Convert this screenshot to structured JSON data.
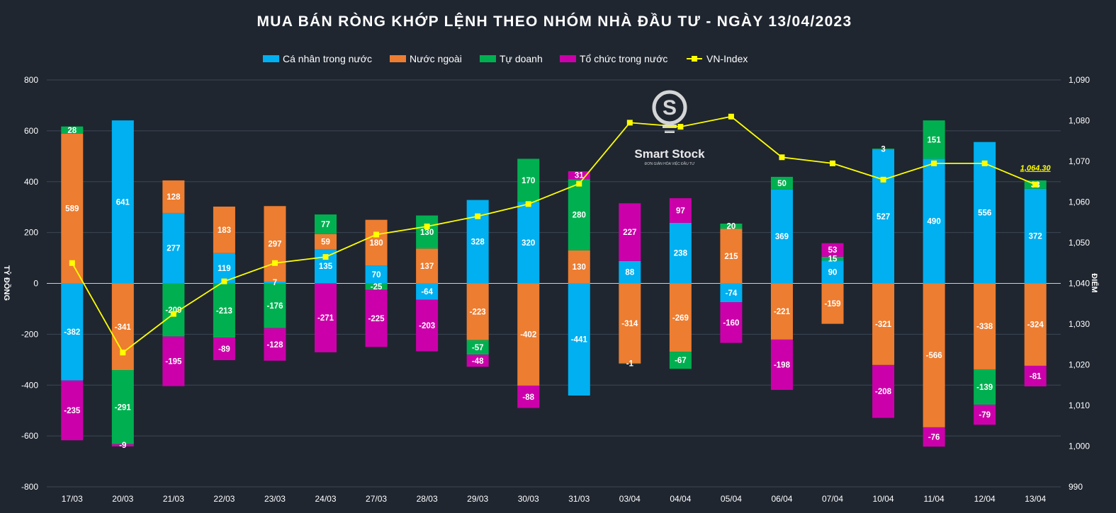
{
  "chart_data": {
    "type": "bar",
    "title": "MUA BÁN RÒNG KHỚP LỆNH THEO NHÓM NHÀ ĐẦU TƯ - NGÀY 13/04/2023",
    "ylabel": "TỶ ĐỒNG",
    "y2label": "ĐIỂM",
    "ylim": [
      -800,
      800
    ],
    "y2lim": [
      990,
      1090
    ],
    "yticks": [
      "800",
      "600",
      "400",
      "200",
      "0",
      "-200",
      "-400",
      "-600",
      "-800"
    ],
    "y2ticks": [
      "1,090",
      "1,080",
      "1,070",
      "1,060",
      "1,050",
      "1,040",
      "1,030",
      "1,020",
      "1,010",
      "1,000",
      "990"
    ],
    "categories": [
      "17/03",
      "20/03",
      "21/03",
      "22/03",
      "23/03",
      "24/03",
      "27/03",
      "28/03",
      "29/03",
      "30/03",
      "31/03",
      "03/04",
      "04/04",
      "05/04",
      "06/04",
      "07/04",
      "10/04",
      "11/04",
      "12/04",
      "13/04"
    ],
    "series": [
      {
        "name": "Cá nhân trong nước",
        "color": "#00b0f0",
        "values": [
          -382,
          641,
          277,
          119,
          7,
          135,
          70,
          -64,
          328,
          320,
          -441,
          88,
          238,
          -74,
          369,
          90,
          527,
          490,
          556,
          372
        ]
      },
      {
        "name": "Nước ngoài",
        "color": "#ed7d31",
        "values": [
          589,
          -341,
          128,
          183,
          297,
          59,
          180,
          137,
          -223,
          -402,
          130,
          -314,
          -269,
          215,
          -221,
          -159,
          -321,
          -566,
          -338,
          -324
        ]
      },
      {
        "name": "Tự doanh",
        "color": "#00b050",
        "values": [
          28,
          -291,
          -209,
          -213,
          -176,
          77,
          -25,
          130,
          -57,
          170,
          280,
          -1,
          -67,
          20,
          50,
          15,
          3,
          151,
          -139,
          33
        ]
      },
      {
        "name": "Tổ chức trong nước",
        "color": "#cc00aa",
        "values": [
          -235,
          -9,
          -195,
          -89,
          -128,
          -271,
          -225,
          -203,
          -48,
          -88,
          31,
          227,
          97,
          -160,
          -198,
          53,
          -208,
          -76,
          -79,
          -81
        ]
      }
    ],
    "line": {
      "name": "VN-Index",
      "color": "#ffff00",
      "values": [
        1045.0,
        1023.0,
        1032.5,
        1040.5,
        1045.0,
        1046.5,
        1052.0,
        1054.0,
        1056.5,
        1059.5,
        1064.5,
        1079.5,
        1078.5,
        1081.0,
        1071.0,
        1069.5,
        1065.5,
        1069.5,
        1069.5,
        1064.3
      ]
    },
    "last_label": "1,064.30"
  },
  "logo": {
    "name": "Smart Stock",
    "tagline": "ĐƠN GIẢN HÓA VIỆC ĐẦU TƯ"
  }
}
